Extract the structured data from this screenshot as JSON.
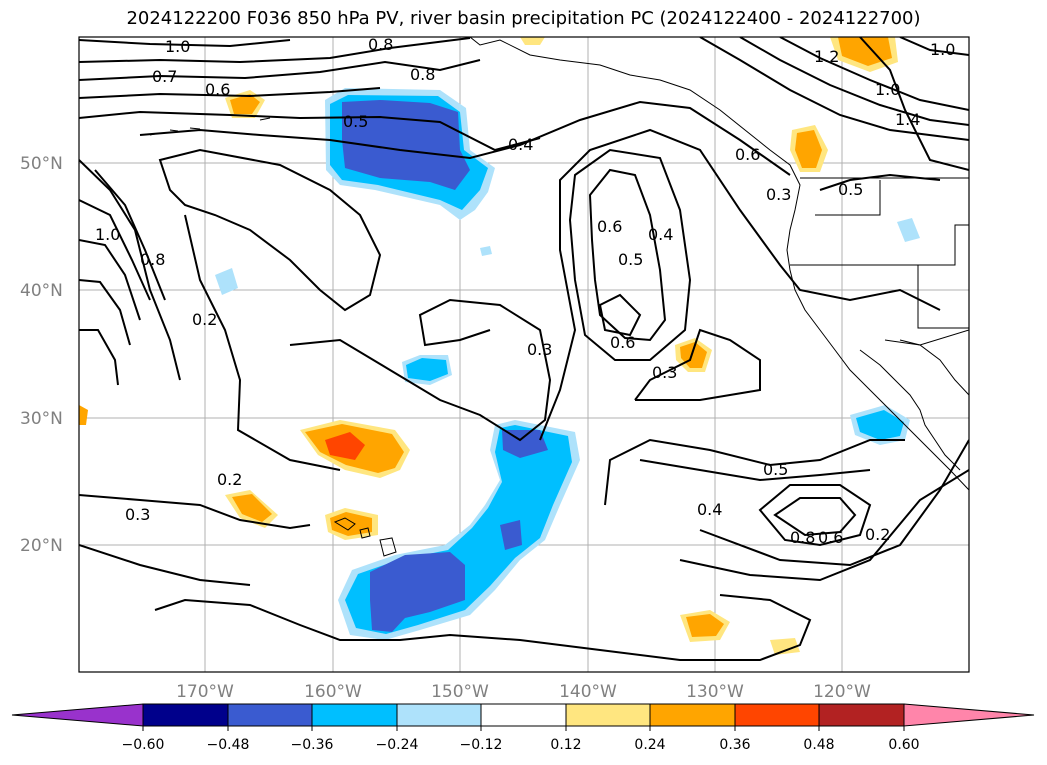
{
  "title": "2024122200 F036 850 hPa PV, river basin precipitation PC (2024122400 - 2024122700)",
  "axes": {
    "lon_ticks": [
      "170°W",
      "160°W",
      "150°W",
      "140°W",
      "130°W",
      "120°W"
    ],
    "lat_ticks": [
      "50°N",
      "40°N",
      "30°N",
      "20°N"
    ]
  },
  "colorbar": {
    "ticks": [
      "−0.60",
      "−0.48",
      "−0.36",
      "−0.24",
      "−0.12",
      "0.12",
      "0.24",
      "0.36",
      "0.48",
      "0.60"
    ],
    "colors": [
      "#9932cc",
      "#00008b",
      "#3a5bd0",
      "#00bfff",
      "#aee2fb",
      "#ffffff",
      "#ffe680",
      "#ffa500",
      "#ff4500",
      "#b22222",
      "#ff85aa"
    ]
  },
  "contour_labels": [
    "1.0",
    "0.8",
    "0.8",
    "0.7",
    "0.6",
    "0.5",
    "0.4",
    "0.6",
    "0.5",
    "0.4",
    "0.6",
    "0.3",
    "0.3",
    "0.2",
    "0.2",
    "0.3",
    "0.5",
    "0.4",
    "0.8",
    "0.6",
    "0.2",
    "0.5",
    "1.2",
    "1.0",
    "1.4",
    "1.0",
    "1.0",
    "0.8",
    "0.6",
    "0.3"
  ],
  "shading_colors": {
    "blue_dark": "#3a5bd0",
    "blue_mid": "#00bfff",
    "blue_light": "#aee2fb",
    "orange_light": "#ffe680",
    "orange": "#ffa500",
    "red": "#ff4500"
  }
}
